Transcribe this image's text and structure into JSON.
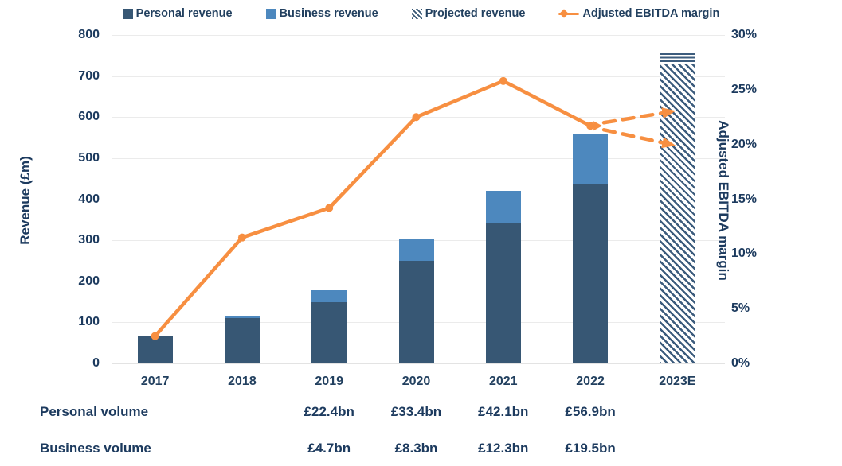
{
  "legend": [
    {
      "label": "Personal revenue",
      "type": "square",
      "color": "#375774"
    },
    {
      "label": "Business revenue",
      "type": "square",
      "color": "#4d88be"
    },
    {
      "label": "Projected revenue",
      "type": "hatch",
      "color": "#375774"
    },
    {
      "label": "Adjusted EBITDA margin",
      "type": "line-diamond",
      "color": "#f78f41"
    }
  ],
  "axes": {
    "left_title": "Revenue (£m)",
    "left_ticks": [
      "0",
      "100",
      "200",
      "300",
      "400",
      "500",
      "600",
      "700",
      "800"
    ],
    "right_title": "Adjusted EBITDA margin",
    "right_ticks": [
      "0%",
      "5%",
      "10%",
      "15%",
      "20%",
      "25%",
      "30%"
    ]
  },
  "chart_data": {
    "type": "bar",
    "subtype": "stacked bars with secondary-axis line",
    "categories": [
      "2017",
      "2018",
      "2019",
      "2020",
      "2021",
      "2022",
      "2023E"
    ],
    "series": [
      {
        "name": "Personal revenue",
        "type": "bar",
        "stack": true,
        "color": "#375774",
        "values": [
          65,
          110,
          150,
          250,
          340,
          435,
          0
        ]
      },
      {
        "name": "Business revenue",
        "type": "bar",
        "stack": true,
        "color": "#4d88be",
        "values": [
          0,
          7,
          28,
          55,
          80,
          125,
          0
        ]
      },
      {
        "name": "Projected revenue",
        "type": "bar",
        "pattern": "diagonal-hatch",
        "color": "#3c5c7d",
        "values": [
          0,
          0,
          0,
          0,
          0,
          0,
          755
        ],
        "cap_striped_units": 25
      },
      {
        "name": "Adjusted EBITDA margin",
        "type": "line",
        "axis": "right",
        "color": "#f78f41",
        "values": [
          2.5,
          11.5,
          14.2,
          22.5,
          25.8,
          21.7,
          null
        ]
      }
    ],
    "projections_2023E": [
      23,
      20
    ],
    "xlabel": "",
    "ylabel_left": "Revenue (£m)",
    "ylim_left": [
      0,
      800
    ],
    "ylabel_right": "Adjusted EBITDA margin",
    "ylim_right": [
      0,
      30
    ],
    "grid": "horizontal",
    "legend_position": "top-center"
  },
  "table": {
    "rows": [
      {
        "label": "Personal volume",
        "values": [
          "",
          "",
          "£22.4bn",
          "£33.4bn",
          "£42.1bn",
          "£56.9bn",
          ""
        ]
      },
      {
        "label": "Business volume",
        "values": [
          "",
          "",
          "£4.7bn",
          "£8.3bn",
          "£12.3bn",
          "£19.5bn",
          ""
        ]
      }
    ]
  }
}
